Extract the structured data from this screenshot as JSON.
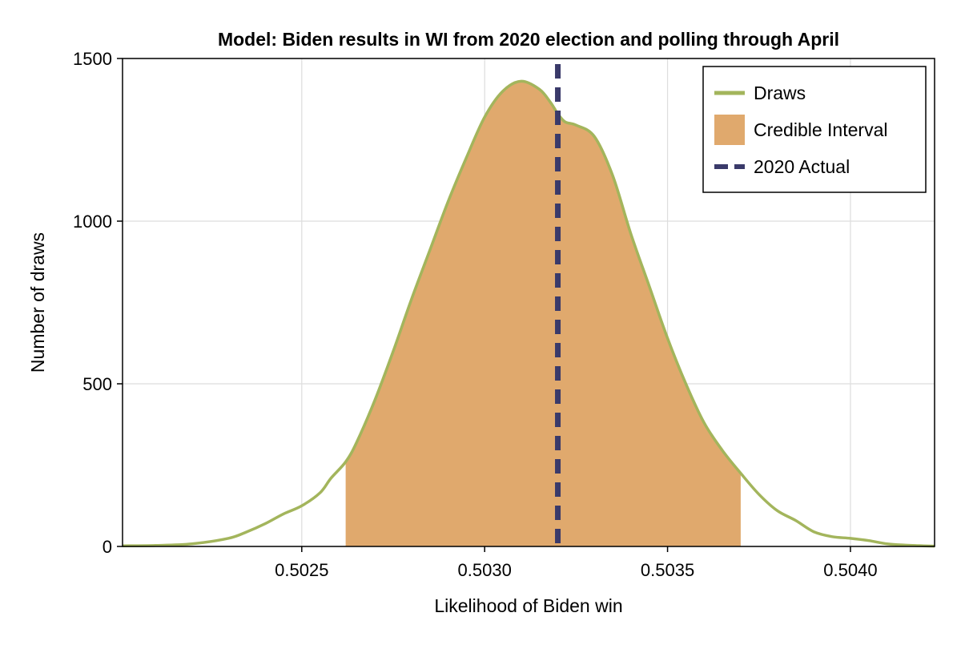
{
  "chart_data": {
    "type": "area",
    "title": "Model: Biden results in WI from 2020 election and polling through April",
    "xlabel": "Likelihood of Biden win",
    "ylabel": "Number of draws",
    "xlim": [
      0.50201,
      0.50423
    ],
    "ylim": [
      0,
      1500
    ],
    "x_ticks": [
      0.5025,
      0.503,
      0.5035,
      0.504
    ],
    "x_tick_labels": [
      "0.5025",
      "0.5030",
      "0.5035",
      "0.5040"
    ],
    "y_ticks": [
      0,
      500,
      1000,
      1500
    ],
    "y_tick_labels": [
      "0",
      "500",
      "1000",
      "1500"
    ],
    "grid": true,
    "legend_position": "top-right",
    "legend": [
      {
        "label": "Draws",
        "kind": "line",
        "color": "#a3b55c"
      },
      {
        "label": "Credible Interval",
        "kind": "patch",
        "color": "#e0a96d"
      },
      {
        "label": "2020 Actual",
        "kind": "dashed-line",
        "color": "#3a3a6a"
      }
    ],
    "series": [
      {
        "name": "Draws",
        "color": "#a3b55c",
        "x": [
          0.50201,
          0.5021,
          0.5022,
          0.5023,
          0.50235,
          0.5024,
          0.50245,
          0.5025,
          0.50255,
          0.50258,
          0.50262,
          0.50265,
          0.5027,
          0.50275,
          0.5028,
          0.50285,
          0.5029,
          0.50295,
          0.503,
          0.50305,
          0.5031,
          0.50315,
          0.50318,
          0.5032,
          0.50322,
          0.50325,
          0.5033,
          0.50335,
          0.5034,
          0.50345,
          0.5035,
          0.50355,
          0.5036,
          0.50365,
          0.5037,
          0.50375,
          0.5038,
          0.50385,
          0.5039,
          0.50395,
          0.504,
          0.50405,
          0.5041,
          0.50415,
          0.5042,
          0.50423
        ],
        "y": [
          2,
          3,
          8,
          25,
          45,
          70,
          100,
          125,
          165,
          210,
          260,
          320,
          450,
          600,
          760,
          910,
          1060,
          1195,
          1320,
          1400,
          1430,
          1405,
          1365,
          1330,
          1305,
          1295,
          1260,
          1140,
          960,
          800,
          640,
          500,
          380,
          295,
          225,
          160,
          110,
          80,
          45,
          30,
          25,
          18,
          8,
          4,
          2,
          1
        ]
      }
    ],
    "credible_interval": {
      "name": "Credible Interval",
      "color": "#e0a96d",
      "x_min": 0.50262,
      "x_max": 0.5037
    },
    "reference_line": {
      "name": "2020 Actual",
      "x": 0.5032,
      "color": "#3a3a6a",
      "style": "dashed"
    }
  }
}
